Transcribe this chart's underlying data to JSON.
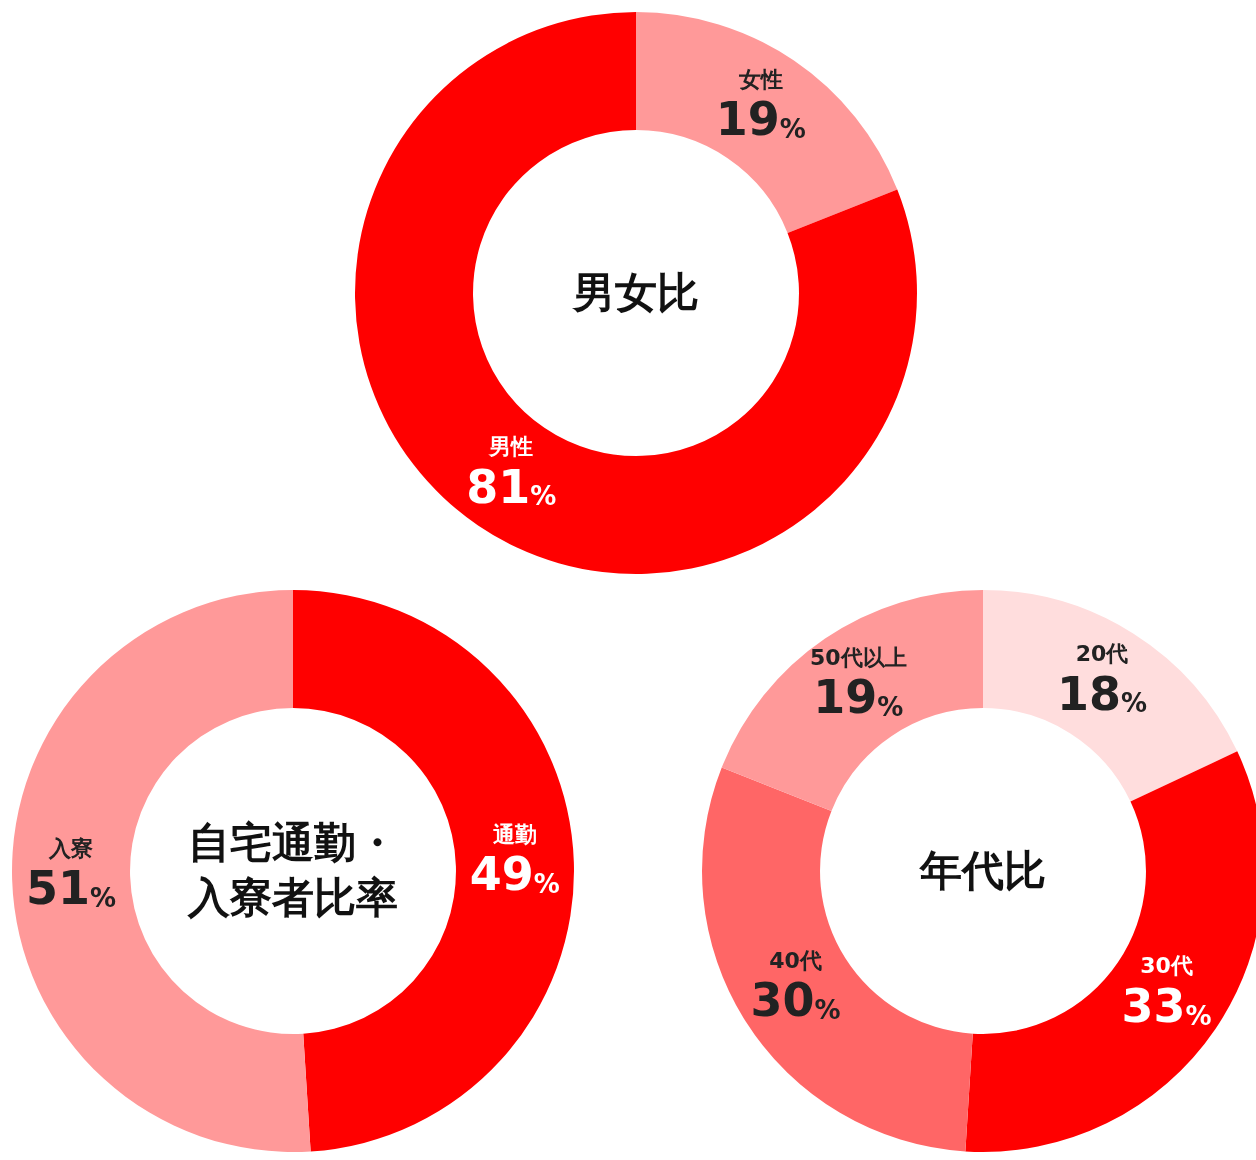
{
  "chart_data": [
    {
      "type": "donut",
      "title": "男女比",
      "categories": [
        "女性",
        "男性"
      ],
      "values": [
        19,
        81
      ],
      "value_labels": [
        "19%",
        "81%"
      ],
      "colors": [
        "#ff9999",
        "#ff0000"
      ],
      "legend": false
    },
    {
      "type": "donut",
      "title": "自宅通勤・入寮者比率",
      "categories": [
        "通勤",
        "入寮"
      ],
      "values": [
        49,
        51
      ],
      "value_labels": [
        "49%",
        "51%"
      ],
      "colors": [
        "#ff0000",
        "#ff9999"
      ],
      "legend": false
    },
    {
      "type": "donut",
      "title": "年代比",
      "categories": [
        "20代",
        "30代",
        "40代",
        "50代以上"
      ],
      "values": [
        18,
        33,
        30,
        19
      ],
      "value_labels": [
        "18%",
        "33%",
        "30%",
        "19%"
      ],
      "colors": [
        "#ffdddd",
        "#ff0000",
        "#ff6666",
        "#ff9999"
      ],
      "legend": false
    }
  ]
}
